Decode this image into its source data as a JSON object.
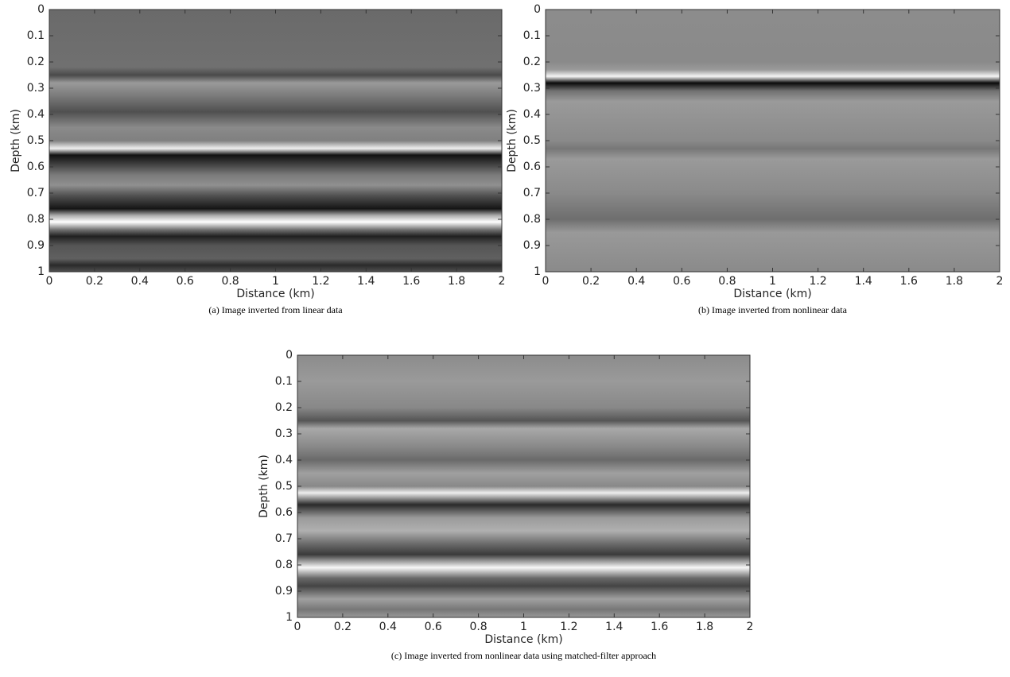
{
  "chart_data": [
    {
      "type": "image",
      "caption": "(a) Image inverted from linear data",
      "xlabel": "Distance (km)",
      "ylabel": "Depth (km)",
      "xlim": [
        0,
        2
      ],
      "ylim": [
        1,
        0
      ],
      "xticks": [
        0,
        0.2,
        0.4,
        0.6,
        0.8,
        1,
        1.2,
        1.4,
        1.6,
        1.8,
        2
      ],
      "yticks": [
        0,
        0.1,
        0.2,
        0.3,
        0.4,
        0.5,
        0.6,
        0.7,
        0.8,
        0.9,
        1
      ]
    },
    {
      "type": "image",
      "caption": "(b) Image inverted from nonlinear data",
      "xlabel": "Distance (km)",
      "ylabel": "Depth (km)",
      "xlim": [
        0,
        2
      ],
      "ylim": [
        1,
        0
      ],
      "xticks": [
        0,
        0.2,
        0.4,
        0.6,
        0.8,
        1,
        1.2,
        1.4,
        1.6,
        1.8,
        2
      ],
      "yticks": [
        0,
        0.1,
        0.2,
        0.3,
        0.4,
        0.5,
        0.6,
        0.7,
        0.8,
        0.9,
        1
      ]
    },
    {
      "type": "image",
      "caption": "(c) Image inverted from nonlinear data using matched-filter approach",
      "xlabel": "Distance (km)",
      "ylabel": "Depth (km)",
      "xlim": [
        0,
        2
      ],
      "ylim": [
        1,
        0
      ],
      "xticks": [
        0,
        0.2,
        0.4,
        0.6,
        0.8,
        1,
        1.2,
        1.4,
        1.6,
        1.8,
        2
      ],
      "yticks": [
        0,
        0.1,
        0.2,
        0.3,
        0.4,
        0.5,
        0.6,
        0.7,
        0.8,
        0.9,
        1
      ]
    }
  ]
}
